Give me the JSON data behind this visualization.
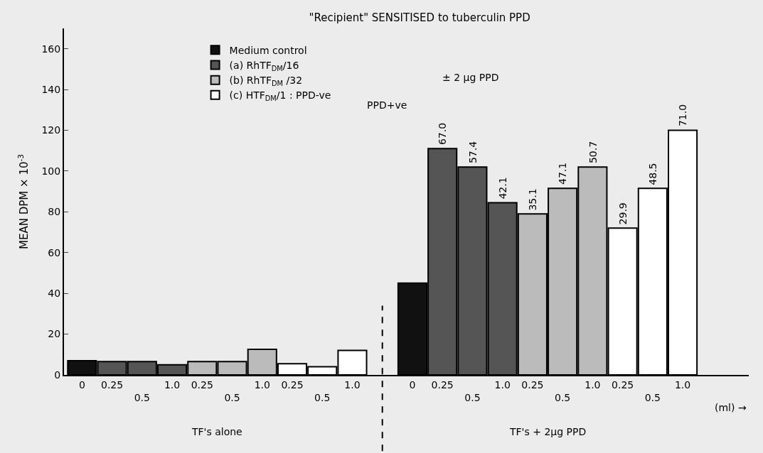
{
  "chart_data": {
    "type": "bar",
    "title": "\"Recipient\" SENSITISED to tuberculin PPD",
    "ylabel": "MEAN DPM × 10$^{-3}$",
    "categories": [
      "0",
      "0.25",
      "0.5",
      "1.0",
      "0.25",
      "0.5",
      "1.0",
      "0.25",
      "0.5",
      "1.0",
      null,
      "0",
      "0.25",
      "0.5",
      "1.0",
      "0.25",
      "0.5",
      "1.0",
      "0.25",
      "0.5",
      "1.0"
    ],
    "series": [
      {
        "name": "Medium control",
        "color": "#111111",
        "values": [
          7,
          null,
          null,
          null,
          null,
          null,
          null,
          null,
          null,
          null,
          null,
          45,
          null,
          null,
          null,
          null,
          null,
          null,
          null,
          null,
          null
        ]
      },
      {
        "name": "(a) RhTF$_{DM}$/16",
        "color": "#555555",
        "values": [
          null,
          6.5,
          6.5,
          5,
          null,
          null,
          null,
          null,
          null,
          null,
          null,
          null,
          111,
          102,
          84.5,
          null,
          null,
          null,
          null,
          null,
          null
        ]
      },
      {
        "name": "(b) RhTF$_{DM}$ /32",
        "color": "#bbbbbb",
        "values": [
          null,
          null,
          null,
          null,
          6.5,
          6.5,
          12.5,
          null,
          null,
          null,
          null,
          null,
          null,
          null,
          null,
          79,
          91.5,
          102,
          null,
          null,
          null
        ]
      },
      {
        "name": "(c) HTF$_{DM}$/1 : PPD-ve",
        "color": "#ffffff",
        "values": [
          null,
          null,
          null,
          null,
          null,
          null,
          null,
          5.5,
          4,
          12,
          null,
          null,
          null,
          null,
          null,
          null,
          null,
          null,
          72,
          91.5,
          120
        ]
      }
    ],
    "ylim": [
      0,
      170
    ],
    "yticks": [
      0,
      20,
      40,
      60,
      80,
      100,
      120,
      140,
      160
    ],
    "grid": false,
    "legend": "top left",
    "annotations": [
      "PPD+ve",
      "± 2 μg PPD",
      "TF's alone",
      "TF's + 2μg PPD",
      "(ml) →",
      "67.0",
      "57.4",
      "42.1",
      "35.1",
      "47.1",
      "50.7",
      "29.9",
      "48.5",
      "71.0"
    ]
  }
}
